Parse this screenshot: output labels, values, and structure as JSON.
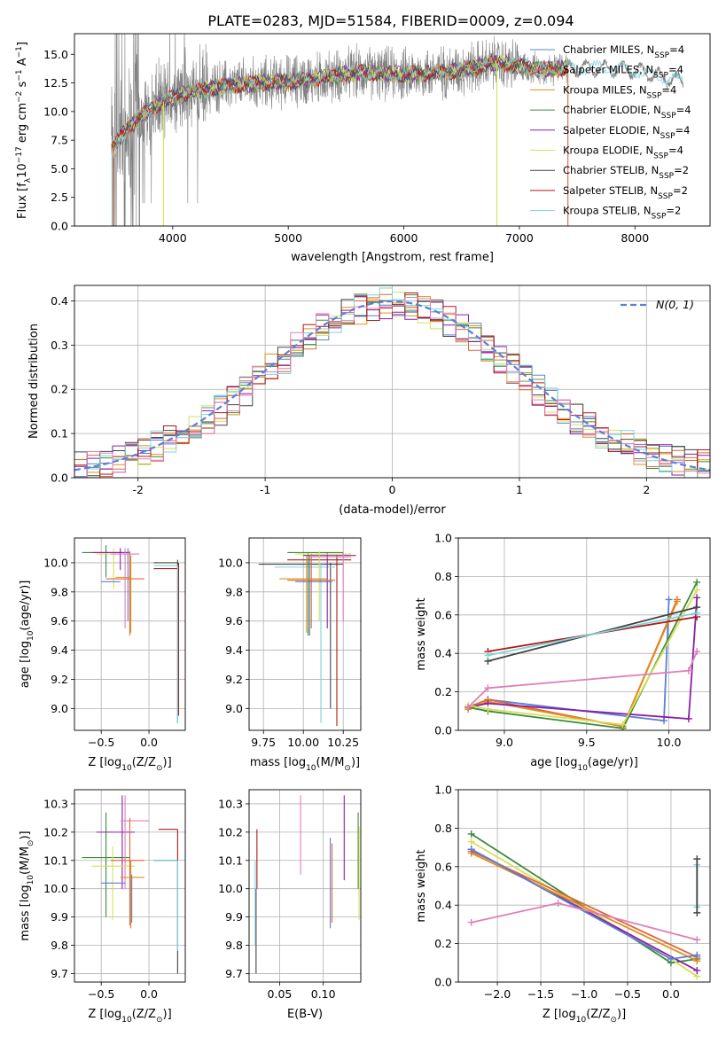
{
  "title": "PLATE=0283, MJD=51584, FIBERID=0009, z=0.094",
  "colors": {
    "chabrier_miles": "#5b7fd6",
    "salpeter_miles": "#e0663a",
    "kroupa_miles": "#e28f1a",
    "chabrier_elodie": "#3f8a3a",
    "salpeter_elodie": "#8a1fa6",
    "kroupa_elodie": "#d4e05a",
    "chabrier_stelib": "#444444",
    "salpeter_stelib": "#b01818",
    "kroupa_stelib": "#7fd3dc",
    "pink": "#e07fb8",
    "data_gray": "#808080"
  },
  "chart_data": [
    {
      "id": "spectrum",
      "type": "line",
      "xlabel": "wavelength [Angstrom, rest frame]",
      "ylabel": "Flux [f",
      "ylabel_mid": "10",
      "ylabel_exp": "−17",
      "ylabel_rest": " erg cm",
      "ylabel_rest2": " s",
      "ylabel_rest3": " A",
      "xlim": [
        3150,
        8650
      ],
      "ylim": [
        0,
        16.8
      ],
      "xticks": [
        4000,
        5000,
        6000,
        7000,
        8000
      ],
      "yticks": [
        0.0,
        2.5,
        5.0,
        7.5,
        10.0,
        12.5,
        15.0
      ],
      "ytick_labels": [
        "0.0",
        "2.5",
        "5.0",
        "7.5",
        "10.0",
        "12.5",
        "15.0"
      ],
      "legend": [
        {
          "name": "Chabrier MILES, N",
          "sub": "SSP",
          "rest": "=4",
          "color": "#5b7fd6"
        },
        {
          "name": "Salpeter MILES, N",
          "sub": "SSP",
          "rest": "=4",
          "color": "#e0663a"
        },
        {
          "name": "Kroupa MILES, N",
          "sub": "SSP",
          "rest": "=4",
          "color": "#e28f1a"
        },
        {
          "name": "Chabrier ELODIE, N",
          "sub": "SSP",
          "rest": "=4",
          "color": "#3f8a3a"
        },
        {
          "name": "Salpeter ELODIE, N",
          "sub": "SSP",
          "rest": "=4",
          "color": "#8a1fa6"
        },
        {
          "name": "Kroupa ELODIE, N",
          "sub": "SSP",
          "rest": "=4",
          "color": "#d4e05a"
        },
        {
          "name": "Chabrier STELIB, N",
          "sub": "SSP",
          "rest": "=2",
          "color": "#444444"
        },
        {
          "name": "Salpeter STELIB, N",
          "sub": "SSP",
          "rest": "=2",
          "color": "#b01818"
        },
        {
          "name": "Kroupa STELIB, N",
          "sub": "SSP",
          "rest": "=2",
          "color": "#7fd3dc"
        }
      ],
      "data_anchor": {
        "x": [
          3480,
          3600,
          3720,
          3900,
          4100,
          4400,
          4800,
          5200,
          5600,
          6000,
          6400,
          6800,
          7200,
          7600,
          8000,
          8400
        ],
        "y": [
          6.8,
          8.5,
          9.5,
          10.8,
          11.5,
          12.2,
          12.5,
          12.8,
          13.4,
          13.2,
          13.5,
          14.2,
          13.7,
          13.8,
          13.6,
          12.6
        ]
      }
    },
    {
      "id": "residuals",
      "type": "histogram",
      "xlabel": "(data-model)/error",
      "ylabel": "Normed distribution",
      "xlim": [
        -2.5,
        2.5
      ],
      "ylim": [
        0,
        0.435
      ],
      "xticks": [
        -2,
        -1,
        0,
        1,
        2
      ],
      "yticks": [
        0.0,
        0.1,
        0.2,
        0.3,
        0.4
      ],
      "ytick_labels": [
        "0.0",
        "0.1",
        "0.2",
        "0.3",
        "0.4"
      ],
      "legend": "N(0, 1)",
      "bin_width": 0.1
    },
    {
      "id": "age_vs_Z",
      "type": "scatter",
      "xlabel": "Z [log",
      "xlabel_sub": "10",
      "xlabel_rest": "(Z/Z",
      "xlabel_end": ")]",
      "ylabel": "age  [log",
      "ylabel_sub": "10",
      "ylabel_rest": "(age/yr)]",
      "xlim": [
        -0.78,
        0.38
      ],
      "ylim": [
        8.85,
        10.17
      ],
      "xticks": [
        -0.5,
        0.0
      ],
      "xtick_labels": [
        "−0.5",
        "0.0"
      ],
      "yticks": [
        9.0,
        9.2,
        9.4,
        9.6,
        9.8,
        10.0
      ],
      "ytick_labels": [
        "9.0",
        "9.2",
        "9.4",
        "9.6",
        "9.8",
        "10.0"
      ]
    },
    {
      "id": "age_vs_mass",
      "type": "scatter",
      "xlabel": "mass [log",
      "xlabel_sub": "10",
      "xlabel_rest": "(M/M",
      "xlabel_end": ")]",
      "xlim": [
        9.66,
        10.36
      ],
      "ylim": [
        8.85,
        10.17
      ],
      "xticks": [
        9.75,
        10.0,
        10.25
      ],
      "xtick_labels": [
        "9.75",
        "10.00",
        "10.25"
      ],
      "yticks": [
        9.0,
        9.2,
        9.4,
        9.6,
        9.8,
        10.0
      ],
      "ytick_labels": [
        "9.0",
        "9.2",
        "9.4",
        "9.6",
        "9.8",
        "10.0"
      ]
    },
    {
      "id": "massweight_vs_age",
      "type": "line",
      "xlabel": "age  [log",
      "xlabel_sub": "10",
      "xlabel_rest": "(age/yr)]",
      "ylabel": "mass weight",
      "xlim": [
        8.72,
        10.25
      ],
      "ylim": [
        0,
        1.0
      ],
      "xticks": [
        9.0,
        9.5,
        10.0
      ],
      "xtick_labels": [
        "9.0",
        "9.5",
        "10.0"
      ],
      "yticks": [
        0.0,
        0.2,
        0.4,
        0.6,
        0.8,
        1.0
      ],
      "ytick_labels": [
        "0.0",
        "0.2",
        "0.4",
        "0.6",
        "0.8",
        "1.0"
      ],
      "series": [
        {
          "color": "#5b7fd6",
          "x": [
            8.78,
            8.9,
            9.97,
            10.0
          ],
          "y": [
            0.12,
            0.16,
            0.05,
            0.68
          ]
        },
        {
          "color": "#e0663a",
          "x": [
            8.78,
            8.9,
            9.72,
            10.05
          ],
          "y": [
            0.12,
            0.16,
            0.02,
            0.68
          ]
        },
        {
          "color": "#e28f1a",
          "x": [
            8.78,
            8.9,
            9.72,
            10.05
          ],
          "y": [
            0.11,
            0.15,
            0.02,
            0.67
          ]
        },
        {
          "color": "#3f8a3a",
          "x": [
            8.78,
            8.9,
            9.72,
            10.17
          ],
          "y": [
            0.12,
            0.1,
            0.01,
            0.77
          ]
        },
        {
          "color": "#8a1fa6",
          "x": [
            8.78,
            8.9,
            10.12,
            10.17
          ],
          "y": [
            0.12,
            0.14,
            0.06,
            0.69
          ]
        },
        {
          "color": "#d4e05a",
          "x": [
            8.78,
            8.9,
            9.72,
            10.17
          ],
          "y": [
            0.13,
            0.11,
            0.03,
            0.73
          ]
        },
        {
          "color": "#444444",
          "x": [
            8.9,
            10.17
          ],
          "y": [
            0.36,
            0.64
          ]
        },
        {
          "color": "#b01818",
          "x": [
            8.9,
            10.17
          ],
          "y": [
            0.41,
            0.59
          ]
        },
        {
          "color": "#7fd3dc",
          "x": [
            8.9,
            10.17
          ],
          "y": [
            0.39,
            0.61
          ]
        },
        {
          "color": "#e07fb8",
          "x": [
            8.78,
            8.9,
            10.12,
            10.17
          ],
          "y": [
            0.12,
            0.22,
            0.31,
            0.41
          ]
        }
      ]
    },
    {
      "id": "mass_vs_Z",
      "type": "scatter",
      "xlabel": "Z [log",
      "xlabel_sub": "10",
      "xlabel_rest": "(Z/Z",
      "xlabel_end": ")]",
      "ylabel": "mass [log",
      "ylabel_sub": "10",
      "ylabel_rest": "(M/M",
      "ylabel_end": ")]",
      "xlim": [
        -0.78,
        0.38
      ],
      "ylim": [
        9.67,
        10.35
      ],
      "xticks": [
        -0.5,
        0.0
      ],
      "xtick_labels": [
        "−0.5",
        "0.0"
      ],
      "yticks": [
        9.7,
        9.8,
        9.9,
        10.0,
        10.1,
        10.2,
        10.3
      ],
      "ytick_labels": [
        "9.7",
        "9.8",
        "9.9",
        "10.0",
        "10.1",
        "10.2",
        "10.3"
      ]
    },
    {
      "id": "mass_vs_ebv",
      "type": "scatter",
      "xlabel": "E(B-V)",
      "xlim": [
        0.015,
        0.143
      ],
      "ylim": [
        9.67,
        10.35
      ],
      "xticks": [
        0.05,
        0.1
      ],
      "xtick_labels": [
        "0.05",
        "0.10"
      ],
      "yticks": [
        9.7,
        9.8,
        9.9,
        10.0,
        10.1,
        10.2,
        10.3
      ],
      "ytick_labels": [
        "9.7",
        "9.8",
        "9.9",
        "10.0",
        "10.1",
        "10.2",
        "10.3"
      ]
    },
    {
      "id": "massweight_vs_Z",
      "type": "line",
      "xlabel": "Z [log",
      "xlabel_sub": "10",
      "xlabel_rest": "(Z/Z",
      "xlabel_end": ")]",
      "ylabel": "mass weight",
      "xlim": [
        -2.45,
        0.45
      ],
      "ylim": [
        0,
        1.0
      ],
      "xticks": [
        -2.0,
        -1.5,
        -1.0,
        -0.5,
        0.0
      ],
      "xtick_labels": [
        "−2.0",
        "−1.5",
        "−1.0",
        "−0.5",
        "0.0"
      ],
      "yticks": [
        0.0,
        0.2,
        0.4,
        0.6,
        0.8,
        1.0
      ],
      "ytick_labels": [
        "0.0",
        "0.2",
        "0.4",
        "0.6",
        "0.8",
        "1.0"
      ],
      "series": [
        {
          "color": "#3f8a3a",
          "x": [
            -2.3,
            0.0,
            0.3
          ],
          "y": [
            0.77,
            0.1,
            0.12
          ]
        },
        {
          "color": "#d4e05a",
          "x": [
            -2.3,
            0.0,
            0.3
          ],
          "y": [
            0.73,
            0.12,
            0.03
          ]
        },
        {
          "color": "#8a1fa6",
          "x": [
            -2.3,
            0.3
          ],
          "y": [
            0.69,
            0.06
          ]
        },
        {
          "color": "#e28f1a",
          "x": [
            -2.3,
            0.3
          ],
          "y": [
            0.67,
            0.11
          ]
        },
        {
          "color": "#e0663a",
          "x": [
            -2.3,
            0.3
          ],
          "y": [
            0.68,
            0.13
          ]
        },
        {
          "color": "#5b7fd6",
          "x": [
            -2.3,
            0.0,
            0.3
          ],
          "y": [
            0.69,
            0.12,
            0.14
          ]
        },
        {
          "color": "#e07fb8",
          "x": [
            -2.3,
            -1.3,
            0.3
          ],
          "y": [
            0.31,
            0.41,
            0.22
          ]
        },
        {
          "color": "#7fd3dc",
          "x": [
            0.3,
            0.3
          ],
          "y": [
            0.39,
            0.61
          ]
        },
        {
          "color": "#444444",
          "x": [
            0.3,
            0.3
          ],
          "y": [
            0.36,
            0.64
          ]
        }
      ]
    }
  ]
}
